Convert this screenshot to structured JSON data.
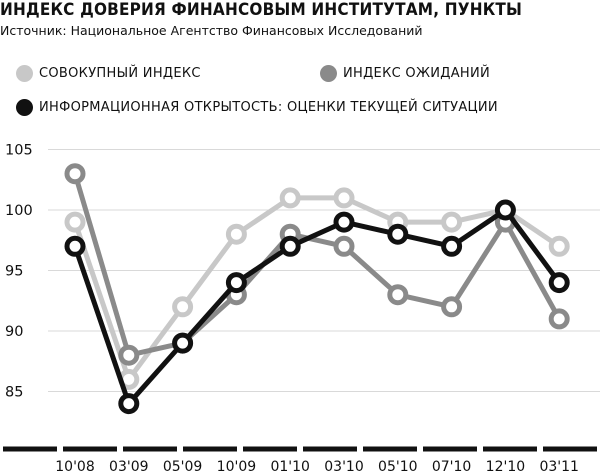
{
  "title": "ИНДЕКС ДОВЕРИЯ ФИНАНСОВЫМ ИНСТИТУТАМ, ПУНКТЫ",
  "source": "Источник: Национальное Агентство Финансовых Исследований",
  "colors": {
    "composite": "#c8c8c8",
    "expectations": "#8a8a8a",
    "current": "#111111",
    "grid": "#d9d9d9",
    "axis": "#111111"
  },
  "legend": [
    {
      "series": "composite",
      "label": "СОВОКУПНЫЙ ИНДЕКС"
    },
    {
      "series": "expectations",
      "label": "ИНДЕКС ОЖИДАНИЙ"
    },
    {
      "series": "current",
      "label": "ИНФОРМАЦИОННАЯ ОТКРЫТОСТЬ: ОЦЕНКИ ТЕКУЩЕЙ СИТУАЦИИ"
    }
  ],
  "chart_data": {
    "type": "line",
    "title": "ИНДЕКС ДОВЕРИЯ ФИНАНСОВЫМ ИНСТИТУТАМ, ПУНКТЫ",
    "xlabel": "",
    "ylabel": "",
    "ylim": [
      81,
      106
    ],
    "yticks": [
      85,
      90,
      95,
      100,
      105
    ],
    "grid": true,
    "legend_position": "top",
    "categories": [
      "10'08",
      "03'09",
      "05'09",
      "10'09",
      "01'10",
      "03'10",
      "05'10",
      "07'10",
      "12'10",
      "03'11"
    ],
    "series": [
      {
        "key": "composite",
        "name": "СОВОКУПНЫЙ ИНДЕКС",
        "values": [
          99,
          86,
          92,
          98,
          101,
          101,
          99,
          99,
          100,
          97
        ]
      },
      {
        "key": "expectations",
        "name": "ИНДЕКС ОЖИДАНИЙ",
        "values": [
          103,
          88,
          89,
          93,
          98,
          97,
          93,
          92,
          99,
          91
        ]
      },
      {
        "key": "current",
        "name": "ИНФОРМАЦИОННАЯ ОТКРЫТОСТЬ: ОЦЕНКИ ТЕКУЩЕЙ СИТУАЦИИ",
        "values": [
          97,
          84,
          89,
          94,
          97,
          99,
          98,
          97,
          100,
          94
        ]
      }
    ]
  }
}
